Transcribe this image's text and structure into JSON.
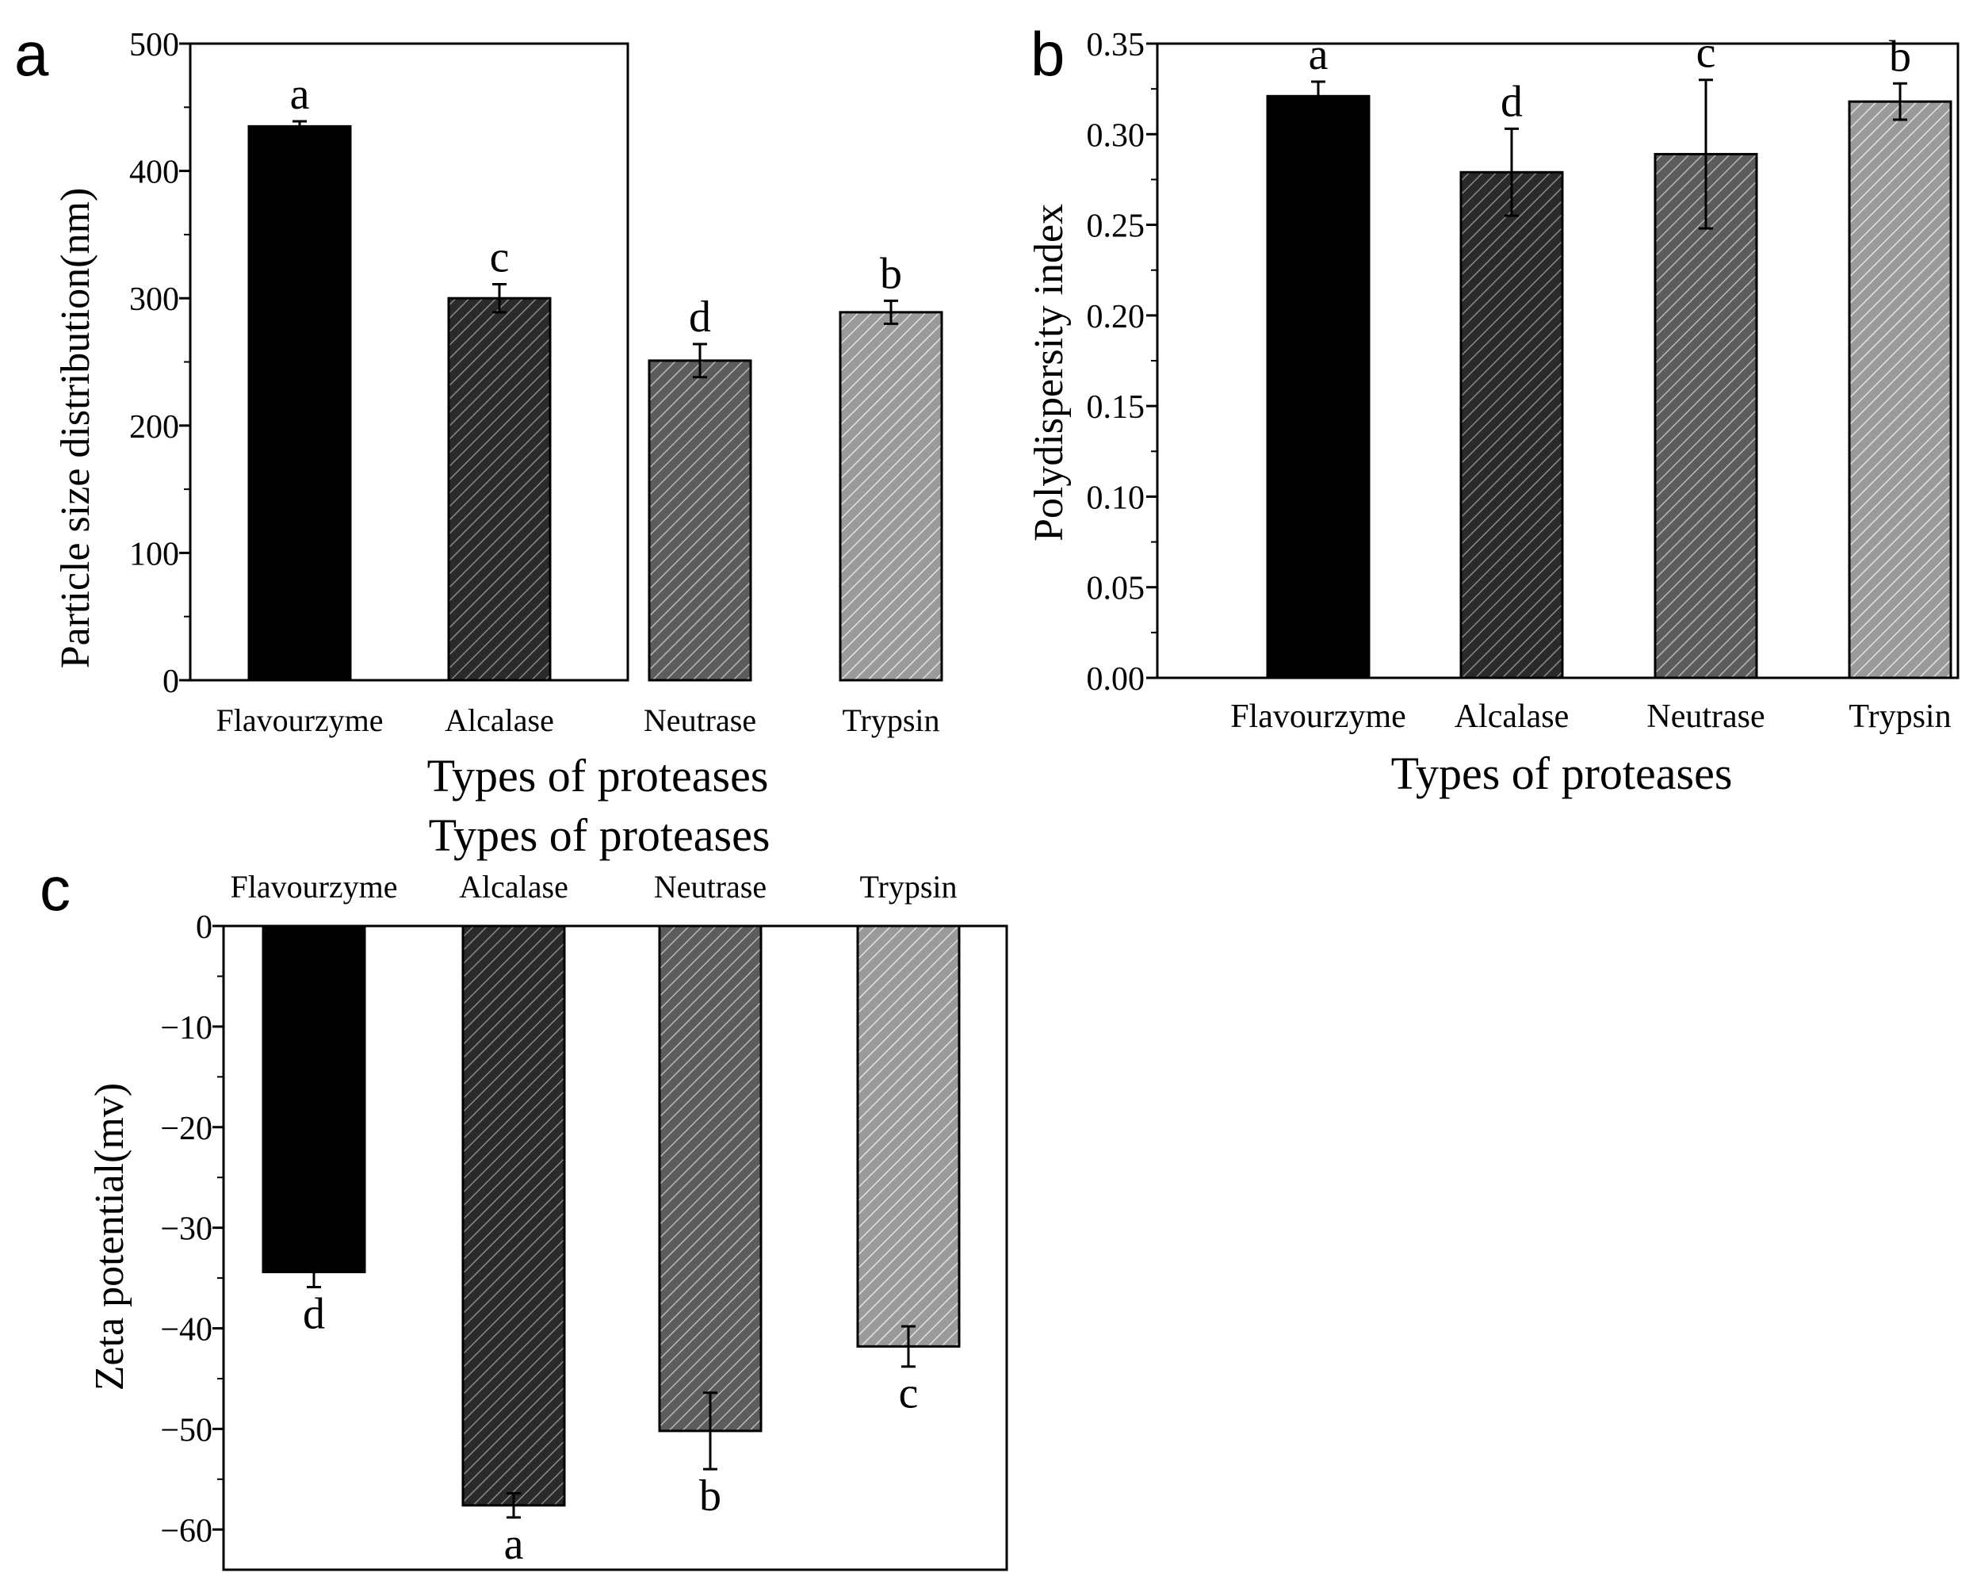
{
  "figure": {
    "panels": [
      {
        "id": "a",
        "letter": "a",
        "ylabel": "Particle size distribution(nm)",
        "xlabel": "Types of proteases",
        "yticks": [
          "0",
          "100",
          "200",
          "300",
          "400",
          "500"
        ]
      },
      {
        "id": "b",
        "letter": "b",
        "ylabel": "Polydispersity index",
        "xlabel": "Types of proteases",
        "yticks": [
          "0.00",
          "0.05",
          "0.10",
          "0.15",
          "0.20",
          "0.25",
          "0.30",
          "0.35"
        ]
      },
      {
        "id": "c",
        "letter": "c",
        "ylabel": "Zeta potential(mv)",
        "xlabel": "Types of proteases",
        "yticks": [
          "0",
          "−10",
          "−20",
          "−30",
          "−40",
          "−50",
          "−60"
        ]
      }
    ]
  },
  "chart_data": [
    {
      "id": "a",
      "type": "bar",
      "title": "",
      "xlabel": "Types of proteases",
      "ylabel": "Particle size distribution(nm)",
      "categories": [
        "Flavourzyme",
        "Alcalase",
        "Neutrase",
        "Trypsin"
      ],
      "values": [
        435,
        300,
        251,
        289
      ],
      "errors": [
        4,
        11,
        13,
        9
      ],
      "significance_letters": [
        "a",
        "c",
        "d",
        "b"
      ],
      "ylim": [
        0,
        500
      ],
      "yticks": [
        0,
        100,
        200,
        300,
        400,
        500
      ],
      "fills": [
        "solid",
        "hatch",
        "hatch",
        "hatch"
      ],
      "colors": [
        "#000000",
        "#2a2a2a",
        "#5c5c5c",
        "#9a9a9a"
      ]
    },
    {
      "id": "b",
      "type": "bar",
      "title": "",
      "xlabel": "Types of proteases",
      "ylabel": "Polydispersity index",
      "categories": [
        "Flavourzyme",
        "Alcalase",
        "Neutrase",
        "Trypsin"
      ],
      "values": [
        0.321,
        0.279,
        0.289,
        0.318
      ],
      "errors": [
        0.008,
        0.024,
        0.041,
        0.01
      ],
      "significance_letters": [
        "a",
        "d",
        "c",
        "b"
      ],
      "ylim": [
        0,
        0.35
      ],
      "yticks": [
        0.0,
        0.05,
        0.1,
        0.15,
        0.2,
        0.25,
        0.3,
        0.35
      ],
      "fills": [
        "solid",
        "hatch",
        "hatch",
        "hatch"
      ],
      "colors": [
        "#000000",
        "#2a2a2a",
        "#5c5c5c",
        "#9a9a9a"
      ]
    },
    {
      "id": "c",
      "type": "bar",
      "title": "",
      "xlabel": "Types of proteases",
      "ylabel": "Zeta potential(mv)",
      "categories": [
        "Flavourzyme",
        "Alcalase",
        "Neutrase",
        "Trypsin"
      ],
      "values": [
        -34.4,
        -57.6,
        -50.2,
        -41.8
      ],
      "errors": [
        1.5,
        1.2,
        3.8,
        2.0
      ],
      "significance_letters": [
        "d",
        "a",
        "b",
        "c"
      ],
      "ylim": [
        -64,
        0
      ],
      "yticks": [
        0,
        -10,
        -20,
        -30,
        -40,
        -50,
        -60
      ],
      "x_axis_position": "top",
      "fills": [
        "solid",
        "hatch",
        "hatch",
        "hatch"
      ],
      "colors": [
        "#000000",
        "#2a2a2a",
        "#5c5c5c",
        "#9a9a9a"
      ]
    }
  ]
}
